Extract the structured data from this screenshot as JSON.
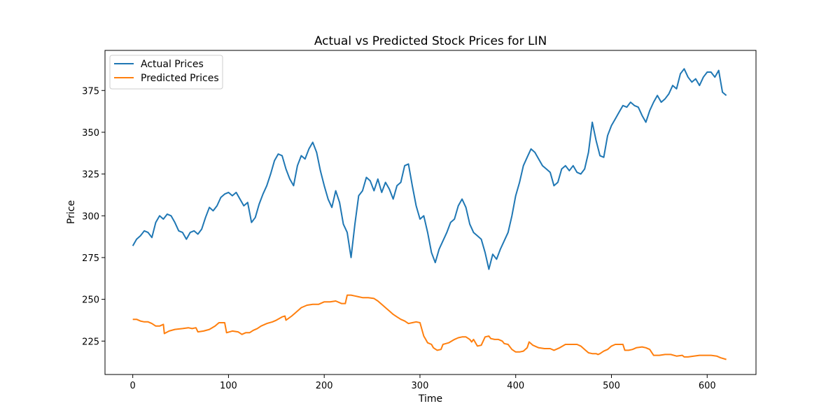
{
  "chart_data": {
    "type": "line",
    "title": "Actual vs Predicted Stock Prices for LIN",
    "xlabel": "Time",
    "ylabel": "Price",
    "xlim": [
      -29,
      651
    ],
    "ylim": [
      205,
      399
    ],
    "x_ticks": [
      0,
      100,
      200,
      300,
      400,
      500,
      600
    ],
    "y_ticks": [
      225,
      250,
      275,
      300,
      325,
      350,
      375
    ],
    "grid": false,
    "legend_position": "top-left",
    "series": [
      {
        "name": "Actual Prices",
        "color": "#1f77b4",
        "points": [
          [
            0,
            282
          ],
          [
            4,
            286
          ],
          [
            8,
            288
          ],
          [
            12,
            291
          ],
          [
            16,
            290
          ],
          [
            20,
            287
          ],
          [
            24,
            296
          ],
          [
            28,
            300
          ],
          [
            32,
            298
          ],
          [
            36,
            301
          ],
          [
            40,
            300
          ],
          [
            44,
            296
          ],
          [
            48,
            291
          ],
          [
            52,
            290
          ],
          [
            56,
            286
          ],
          [
            60,
            290
          ],
          [
            64,
            291
          ],
          [
            68,
            289
          ],
          [
            72,
            292
          ],
          [
            76,
            299
          ],
          [
            80,
            305
          ],
          [
            84,
            303
          ],
          [
            88,
            306
          ],
          [
            92,
            311
          ],
          [
            96,
            313
          ],
          [
            100,
            314
          ],
          [
            104,
            312
          ],
          [
            108,
            314
          ],
          [
            112,
            310
          ],
          [
            116,
            306
          ],
          [
            120,
            308
          ],
          [
            124,
            296
          ],
          [
            128,
            299
          ],
          [
            132,
            307
          ],
          [
            136,
            313
          ],
          [
            140,
            318
          ],
          [
            144,
            325
          ],
          [
            148,
            333
          ],
          [
            152,
            337
          ],
          [
            156,
            336
          ],
          [
            160,
            328
          ],
          [
            164,
            322
          ],
          [
            168,
            318
          ],
          [
            172,
            330
          ],
          [
            176,
            336
          ],
          [
            180,
            334
          ],
          [
            184,
            340
          ],
          [
            188,
            344
          ],
          [
            192,
            338
          ],
          [
            196,
            327
          ],
          [
            200,
            318
          ],
          [
            204,
            310
          ],
          [
            208,
            305
          ],
          [
            212,
            315
          ],
          [
            216,
            308
          ],
          [
            220,
            295
          ],
          [
            224,
            290
          ],
          [
            228,
            275
          ],
          [
            232,
            295
          ],
          [
            236,
            312
          ],
          [
            240,
            315
          ],
          [
            244,
            323
          ],
          [
            248,
            321
          ],
          [
            252,
            315
          ],
          [
            256,
            322
          ],
          [
            260,
            314
          ],
          [
            264,
            320
          ],
          [
            268,
            316
          ],
          [
            272,
            310
          ],
          [
            276,
            318
          ],
          [
            280,
            320
          ],
          [
            284,
            330
          ],
          [
            288,
            331
          ],
          [
            292,
            318
          ],
          [
            296,
            306
          ],
          [
            300,
            298
          ],
          [
            304,
            300
          ],
          [
            308,
            290
          ],
          [
            312,
            278
          ],
          [
            316,
            272
          ],
          [
            320,
            280
          ],
          [
            324,
            285
          ],
          [
            328,
            290
          ],
          [
            332,
            296
          ],
          [
            336,
            298
          ],
          [
            340,
            306
          ],
          [
            344,
            310
          ],
          [
            348,
            305
          ],
          [
            352,
            295
          ],
          [
            356,
            290
          ],
          [
            360,
            288
          ],
          [
            364,
            286
          ],
          [
            368,
            278
          ],
          [
            372,
            268
          ],
          [
            376,
            277
          ],
          [
            380,
            274
          ],
          [
            384,
            280
          ],
          [
            388,
            285
          ],
          [
            392,
            290
          ],
          [
            396,
            300
          ],
          [
            400,
            312
          ],
          [
            404,
            320
          ],
          [
            408,
            330
          ],
          [
            412,
            335
          ],
          [
            416,
            340
          ],
          [
            420,
            338
          ],
          [
            424,
            334
          ],
          [
            428,
            330
          ],
          [
            432,
            328
          ],
          [
            436,
            326
          ],
          [
            440,
            318
          ],
          [
            444,
            320
          ],
          [
            448,
            328
          ],
          [
            452,
            330
          ],
          [
            456,
            327
          ],
          [
            460,
            330
          ],
          [
            464,
            326
          ],
          [
            468,
            325
          ],
          [
            472,
            328
          ],
          [
            476,
            338
          ],
          [
            480,
            356
          ],
          [
            484,
            345
          ],
          [
            488,
            336
          ],
          [
            492,
            335
          ],
          [
            496,
            348
          ],
          [
            500,
            354
          ],
          [
            504,
            358
          ],
          [
            508,
            362
          ],
          [
            512,
            366
          ],
          [
            516,
            365
          ],
          [
            520,
            368
          ],
          [
            524,
            366
          ],
          [
            528,
            365
          ],
          [
            532,
            360
          ],
          [
            536,
            356
          ],
          [
            540,
            363
          ],
          [
            544,
            368
          ],
          [
            548,
            372
          ],
          [
            552,
            368
          ],
          [
            556,
            370
          ],
          [
            560,
            373
          ],
          [
            564,
            378
          ],
          [
            568,
            376
          ],
          [
            572,
            385
          ],
          [
            576,
            388
          ],
          [
            580,
            383
          ],
          [
            584,
            380
          ],
          [
            588,
            382
          ],
          [
            592,
            378
          ],
          [
            596,
            383
          ],
          [
            600,
            386
          ],
          [
            604,
            386
          ],
          [
            608,
            383
          ],
          [
            612,
            387
          ],
          [
            616,
            374
          ],
          [
            620,
            372
          ]
        ]
      },
      {
        "name": "Predicted Prices",
        "color": "#ff7f0e",
        "points": [
          [
            0,
            238
          ],
          [
            4,
            238
          ],
          [
            8,
            237
          ],
          [
            12,
            236.5
          ],
          [
            16,
            236.5
          ],
          [
            20,
            235.5
          ],
          [
            24,
            234
          ],
          [
            28,
            234
          ],
          [
            32,
            235
          ],
          [
            33,
            229.5
          ],
          [
            38,
            231
          ],
          [
            44,
            232
          ],
          [
            52,
            232.5
          ],
          [
            58,
            233
          ],
          [
            62,
            232.5
          ],
          [
            66,
            233
          ],
          [
            68,
            230.5
          ],
          [
            74,
            231
          ],
          [
            80,
            232
          ],
          [
            86,
            234
          ],
          [
            90,
            236
          ],
          [
            96,
            236
          ],
          [
            98,
            230
          ],
          [
            104,
            231
          ],
          [
            110,
            230.5
          ],
          [
            114,
            229
          ],
          [
            118,
            230
          ],
          [
            122,
            230
          ],
          [
            126,
            231.5
          ],
          [
            130,
            232.5
          ],
          [
            134,
            234
          ],
          [
            140,
            235.5
          ],
          [
            146,
            236.5
          ],
          [
            150,
            237.5
          ],
          [
            156,
            239.5
          ],
          [
            159,
            240
          ],
          [
            160,
            237.5
          ],
          [
            166,
            240
          ],
          [
            170,
            242
          ],
          [
            176,
            245
          ],
          [
            182,
            246.5
          ],
          [
            188,
            247
          ],
          [
            194,
            247
          ],
          [
            200,
            248.5
          ],
          [
            206,
            248.5
          ],
          [
            212,
            249
          ],
          [
            218,
            247.5
          ],
          [
            222,
            247.5
          ],
          [
            224,
            252.5
          ],
          [
            228,
            252.5
          ],
          [
            232,
            252
          ],
          [
            236,
            251.5
          ],
          [
            240,
            251
          ],
          [
            246,
            251
          ],
          [
            252,
            250.5
          ],
          [
            256,
            249
          ],
          [
            260,
            247
          ],
          [
            264,
            245
          ],
          [
            268,
            243
          ],
          [
            272,
            241
          ],
          [
            276,
            239.5
          ],
          [
            280,
            238
          ],
          [
            284,
            237
          ],
          [
            288,
            235.5
          ],
          [
            292,
            236
          ],
          [
            296,
            236.5
          ],
          [
            300,
            236
          ],
          [
            302,
            232
          ],
          [
            304,
            228
          ],
          [
            306,
            226
          ],
          [
            308,
            224
          ],
          [
            312,
            223
          ],
          [
            314,
            221
          ],
          [
            318,
            219.5
          ],
          [
            322,
            220
          ],
          [
            324,
            223
          ],
          [
            330,
            224
          ],
          [
            336,
            226
          ],
          [
            340,
            227
          ],
          [
            344,
            227.5
          ],
          [
            348,
            227.5
          ],
          [
            352,
            226
          ],
          [
            354,
            224.5
          ],
          [
            356,
            226
          ],
          [
            360,
            222
          ],
          [
            364,
            222.5
          ],
          [
            368,
            227.5
          ],
          [
            372,
            228
          ],
          [
            374,
            226.5
          ],
          [
            378,
            226
          ],
          [
            382,
            226
          ],
          [
            386,
            225
          ],
          [
            388,
            223.5
          ],
          [
            392,
            223
          ],
          [
            396,
            220
          ],
          [
            400,
            218.5
          ],
          [
            404,
            218.5
          ],
          [
            408,
            219
          ],
          [
            412,
            221
          ],
          [
            414,
            224.5
          ],
          [
            418,
            222.5
          ],
          [
            424,
            221
          ],
          [
            430,
            220.5
          ],
          [
            436,
            220.5
          ],
          [
            440,
            219.5
          ],
          [
            446,
            221
          ],
          [
            452,
            223
          ],
          [
            458,
            223
          ],
          [
            464,
            223
          ],
          [
            468,
            222
          ],
          [
            472,
            220
          ],
          [
            476,
            218
          ],
          [
            480,
            217.5
          ],
          [
            484,
            217.5
          ],
          [
            486,
            217
          ],
          [
            488,
            217.5
          ],
          [
            492,
            219
          ],
          [
            496,
            220
          ],
          [
            500,
            222
          ],
          [
            504,
            223
          ],
          [
            508,
            223
          ],
          [
            512,
            223
          ],
          [
            514,
            219.5
          ],
          [
            518,
            219.5
          ],
          [
            522,
            220
          ],
          [
            526,
            221
          ],
          [
            532,
            221.5
          ],
          [
            536,
            221
          ],
          [
            540,
            220
          ],
          [
            544,
            216.5
          ],
          [
            550,
            216.5
          ],
          [
            556,
            217
          ],
          [
            562,
            217
          ],
          [
            568,
            216
          ],
          [
            574,
            216.5
          ],
          [
            576,
            215.5
          ],
          [
            580,
            215.5
          ],
          [
            586,
            216
          ],
          [
            592,
            216.5
          ],
          [
            598,
            216.5
          ],
          [
            604,
            216.5
          ],
          [
            610,
            216
          ],
          [
            614,
            215
          ],
          [
            620,
            214
          ]
        ]
      }
    ]
  }
}
